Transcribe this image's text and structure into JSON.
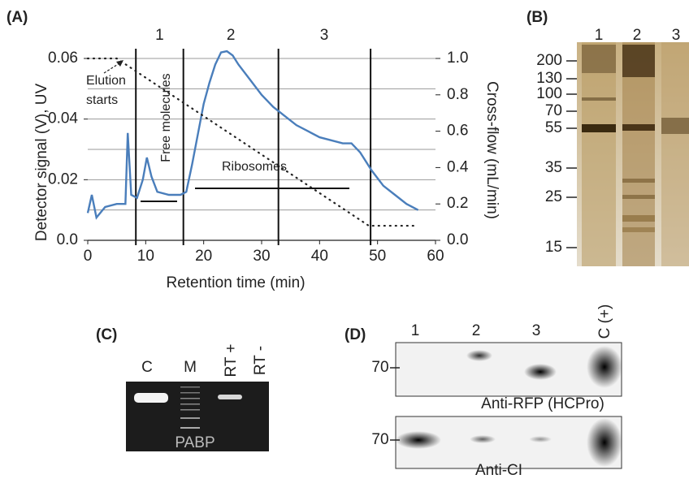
{
  "chart_data": {
    "type": "line",
    "xlabel": "Retention time (min)",
    "ylabel": "Detector signal (V), UV",
    "y2label": "Cross-flow (mL/min)",
    "xlim": [
      0,
      60
    ],
    "ylim": [
      0,
      0.06
    ],
    "y2lim": [
      0,
      1.0
    ],
    "xticks": [
      0,
      10,
      20,
      30,
      40,
      50,
      60
    ],
    "yticks": [
      {
        "value": 0,
        "label": "0.0"
      },
      0.02,
      0.04,
      0.06
    ],
    "y2ticks": [
      {
        "value": 0,
        "label": "0.0"
      },
      0.2,
      0.4,
      0.6,
      0.8,
      {
        "value": 1,
        "label": "1.0"
      }
    ],
    "grid": true,
    "grid_values": [
      0.01,
      0.02,
      0.03,
      0.04,
      0.05,
      0.06
    ],
    "boundaries": [
      8.3,
      16.5,
      32.9,
      48.8
    ],
    "fractions": [
      "1",
      "2",
      "3"
    ],
    "fraction_x": [
      12.4,
      24.7,
      40.8
    ],
    "elution_note": [
      "Elution",
      "starts"
    ],
    "annotations": [
      "Free molecules",
      "Ribosomes"
    ],
    "series": [
      {
        "color": "#4a7ebb",
        "dash": "solid",
        "x": [
          0,
          0.7,
          1.5,
          3,
          5,
          6.5,
          6.9,
          7.5,
          8.5,
          9.5,
          10.2,
          11,
          12,
          14,
          16,
          17,
          18,
          19,
          20,
          21,
          22,
          23,
          24,
          25,
          26,
          28,
          30,
          32,
          34,
          36,
          38,
          40,
          42,
          44,
          45.5,
          47,
          49,
          51,
          53,
          55,
          57
        ],
        "values": [
          0.009,
          0.015,
          0.0075,
          0.011,
          0.012,
          0.012,
          0.0354,
          0.015,
          0.014,
          0.02,
          0.0273,
          0.021,
          0.016,
          0.015,
          0.015,
          0.016,
          0.025,
          0.035,
          0.045,
          0.052,
          0.058,
          0.062,
          0.0624,
          0.061,
          0.058,
          0.053,
          0.048,
          0.044,
          0.041,
          0.038,
          0.036,
          0.034,
          0.033,
          0.032,
          0.032,
          0.029,
          0.023,
          0.018,
          0.015,
          0.012,
          0.01
        ]
      },
      {
        "color": "#222222",
        "dash": "dotted",
        "axis": "y2",
        "x": [
          0,
          5,
          48.5,
          57
        ],
        "values": [
          1.0,
          1.0,
          0.08,
          0.08
        ]
      }
    ]
  },
  "panel_labels": [
    "(A)",
    "(B)",
    "(C)",
    "(D)"
  ],
  "gel_b": {
    "lanes": [
      "1",
      "2",
      "3"
    ],
    "markers": [
      "200",
      "130",
      "100",
      "70",
      "55",
      "35",
      "25",
      "15"
    ]
  },
  "gel_c": {
    "lanes": [
      "C",
      "M",
      "RT +",
      "RT -"
    ],
    "target": "PABP"
  },
  "blot_d": {
    "lanes": [
      "1",
      "2",
      "3",
      "C (+)"
    ],
    "marker_top": "70",
    "marker_bottom": "70",
    "label_top": "Anti-RFP (HCPro)",
    "label_bottom": "Anti-CI"
  }
}
